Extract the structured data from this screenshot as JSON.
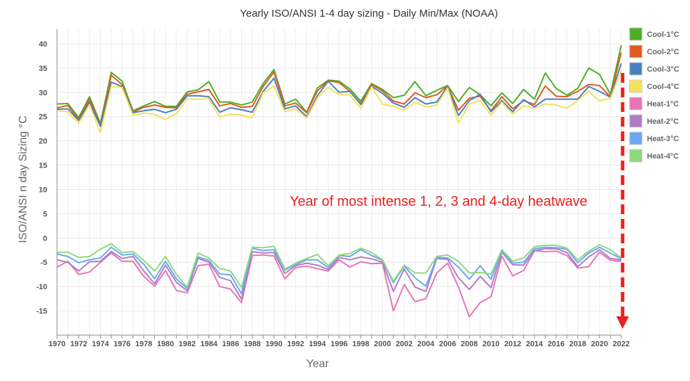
{
  "chart_data": {
    "type": "line",
    "title": "Yearly ISO/ANSI 1-4 day sizing - Daily Min/Max (NOAA)",
    "xlabel": "Year",
    "ylabel": "ISO/ANSI n day Sizing °C",
    "xlim": [
      1970,
      2022
    ],
    "ylim": [
      -20,
      43
    ],
    "yticks": [
      -15,
      -10,
      -5,
      0,
      5,
      10,
      15,
      20,
      25,
      30,
      35,
      40
    ],
    "xticks": [
      1970,
      1972,
      1974,
      1976,
      1978,
      1980,
      1982,
      1984,
      1986,
      1988,
      1990,
      1992,
      1994,
      1996,
      1998,
      2000,
      2002,
      2004,
      2006,
      2008,
      2010,
      2012,
      2014,
      2016,
      2018,
      2020,
      2022
    ],
    "grid": true,
    "legend_position": "right",
    "annotation": "Year of most intense 1, 2, 3 and 4-day heatwave",
    "annotation_color": "#e8201e",
    "x": [
      1970,
      1971,
      1972,
      1973,
      1974,
      1975,
      1976,
      1977,
      1978,
      1979,
      1980,
      1981,
      1982,
      1983,
      1984,
      1985,
      1986,
      1987,
      1988,
      1989,
      1990,
      1991,
      1992,
      1993,
      1994,
      1995,
      1996,
      1997,
      1998,
      1999,
      2000,
      2001,
      2002,
      2003,
      2004,
      2005,
      2006,
      2007,
      2008,
      2009,
      2010,
      2011,
      2012,
      2013,
      2014,
      2015,
      2016,
      2017,
      2018,
      2019,
      2020,
      2021,
      2022
    ],
    "series": [
      {
        "name": "Cool-1°C",
        "color": "#4caf26",
        "values": [
          27.6,
          27.7,
          24.8,
          29.1,
          23.6,
          34.1,
          32.3,
          26.2,
          27.2,
          28.1,
          27.1,
          27.1,
          30.1,
          30.5,
          32.2,
          28.0,
          28.0,
          27.4,
          28.0,
          31.8,
          34.7,
          27.6,
          28.6,
          25.9,
          30.9,
          32.5,
          32.3,
          30.7,
          28.2,
          31.8,
          30.6,
          28.9,
          29.4,
          32.2,
          29.3,
          30.4,
          31.4,
          28.1,
          31.0,
          29.5,
          27.2,
          29.9,
          27.7,
          30.6,
          28.6,
          34.0,
          30.8,
          29.4,
          30.8,
          35.0,
          33.7,
          29.6,
          39.7
        ]
      },
      {
        "name": "Cool-2°C",
        "color": "#e05a1e",
        "values": [
          26.8,
          27.3,
          24.4,
          28.6,
          23.2,
          33.5,
          31.6,
          25.9,
          26.9,
          27.4,
          26.9,
          26.8,
          29.6,
          30.1,
          30.6,
          27.2,
          27.7,
          26.9,
          27.1,
          31.2,
          34.2,
          27.2,
          27.8,
          25.8,
          30.3,
          32.4,
          32.0,
          30.2,
          27.7,
          31.6,
          30.3,
          28.2,
          27.6,
          29.9,
          28.9,
          29.5,
          31.3,
          26.3,
          28.8,
          29.2,
          26.2,
          29.1,
          26.6,
          28.3,
          27.5,
          31.3,
          29.2,
          29.1,
          30.2,
          31.6,
          31.4,
          29.1,
          38.2
        ]
      },
      {
        "name": "Cool-3°C",
        "color": "#4a7fbf",
        "values": [
          26.5,
          26.6,
          24.2,
          28.0,
          23.0,
          32.1,
          31.2,
          25.8,
          26.2,
          26.5,
          25.8,
          26.5,
          29.3,
          29.3,
          29.1,
          25.9,
          26.8,
          26.4,
          25.9,
          30.2,
          32.9,
          26.6,
          27.2,
          25.0,
          29.3,
          32.3,
          30.0,
          30.2,
          27.5,
          31.2,
          29.8,
          27.8,
          26.9,
          28.9,
          27.6,
          28.0,
          31.2,
          25.2,
          28.3,
          29.6,
          26.0,
          28.3,
          26.0,
          28.5,
          27.0,
          28.6,
          28.6,
          28.6,
          28.6,
          31.2,
          30.2,
          29.0,
          36.0
        ]
      },
      {
        "name": "Cool-4°C",
        "color": "#f5e15a",
        "values": [
          26.2,
          26.0,
          23.6,
          27.5,
          21.7,
          31.2,
          31.0,
          25.3,
          25.7,
          25.5,
          24.4,
          25.6,
          28.6,
          28.6,
          28.7,
          24.9,
          25.5,
          25.3,
          24.8,
          29.9,
          31.3,
          26.0,
          26.6,
          24.7,
          28.8,
          31.1,
          29.5,
          29.5,
          26.7,
          31.1,
          27.6,
          27.1,
          26.3,
          28.0,
          27.0,
          27.4,
          30.9,
          23.7,
          27.6,
          28.3,
          25.3,
          28.0,
          25.5,
          27.2,
          26.7,
          27.6,
          27.4,
          26.7,
          28.3,
          30.2,
          28.2,
          28.8,
          34.5
        ]
      },
      {
        "name": "Heat-1°C",
        "color": "#e874b5",
        "values": [
          -6.0,
          -4.8,
          -7.5,
          -7.0,
          -5.0,
          -3.1,
          -4.8,
          -4.8,
          -7.9,
          -9.9,
          -6.7,
          -10.8,
          -11.3,
          -5.7,
          -5.4,
          -10.0,
          -10.5,
          -13.3,
          -3.6,
          -3.5,
          -3.7,
          -8.4,
          -6.1,
          -5.8,
          -6.3,
          -6.8,
          -4.5,
          -6.0,
          -4.9,
          -5.3,
          -5.2,
          -15.0,
          -9.6,
          -13.1,
          -12.5,
          -7.2,
          -5.2,
          -10.1,
          -16.2,
          -13.3,
          -12.1,
          -3.7,
          -7.8,
          -6.7,
          -2.6,
          -2.8,
          -2.7,
          -3.6,
          -6.2,
          -5.9,
          -2.9,
          -4.6,
          -4.8
        ]
      },
      {
        "name": "Heat-2°C",
        "color": "#b07cc6",
        "values": [
          -4.5,
          -5.0,
          -6.8,
          -4.9,
          -4.8,
          -2.8,
          -4.2,
          -3.8,
          -6.8,
          -9.4,
          -5.6,
          -9.1,
          -10.9,
          -4.2,
          -5.0,
          -8.1,
          -8.8,
          -12.6,
          -2.8,
          -3.1,
          -3.0,
          -7.3,
          -5.7,
          -5.2,
          -5.6,
          -6.5,
          -4.0,
          -4.5,
          -3.9,
          -4.3,
          -5.0,
          -11.0,
          -6.4,
          -10.1,
          -11.0,
          -4.2,
          -4.4,
          -8.2,
          -10.6,
          -7.9,
          -10.2,
          -2.9,
          -5.5,
          -5.6,
          -2.6,
          -2.2,
          -2.2,
          -3.0,
          -5.9,
          -3.9,
          -2.4,
          -4.2,
          -4.5
        ]
      },
      {
        "name": "Heat-3°C",
        "color": "#6aa8f5",
        "values": [
          -3.3,
          -3.8,
          -5.1,
          -4.5,
          -4.1,
          -1.9,
          -3.5,
          -3.3,
          -5.4,
          -8.4,
          -4.8,
          -8.4,
          -10.4,
          -3.9,
          -4.6,
          -7.4,
          -7.6,
          -11.5,
          -2.1,
          -2.6,
          -2.4,
          -6.6,
          -5.5,
          -4.5,
          -4.5,
          -6.1,
          -3.6,
          -3.8,
          -2.4,
          -3.6,
          -4.6,
          -9.2,
          -5.8,
          -8.2,
          -9.9,
          -4.0,
          -4.1,
          -6.0,
          -8.5,
          -5.7,
          -8.5,
          -2.7,
          -5.2,
          -5.0,
          -2.2,
          -1.9,
          -2.0,
          -2.3,
          -5.1,
          -3.1,
          -1.9,
          -3.1,
          -4.3
        ]
      },
      {
        "name": "Heat-4°C",
        "color": "#8ed97a",
        "values": [
          -3.0,
          -2.9,
          -4.0,
          -3.8,
          -2.3,
          -1.2,
          -3.0,
          -2.8,
          -4.6,
          -6.8,
          -3.8,
          -7.5,
          -10.1,
          -3.1,
          -4.1,
          -6.3,
          -6.8,
          -10.2,
          -1.9,
          -2.0,
          -1.7,
          -6.4,
          -5.2,
          -4.2,
          -3.4,
          -5.7,
          -3.5,
          -3.2,
          -2.1,
          -3.0,
          -4.5,
          -8.9,
          -5.6,
          -7.2,
          -7.2,
          -3.8,
          -3.5,
          -4.8,
          -7.2,
          -7.1,
          -7.5,
          -2.4,
          -4.8,
          -4.1,
          -1.8,
          -1.5,
          -1.5,
          -2.1,
          -4.5,
          -2.7,
          -1.4,
          -2.4,
          -4.1
        ]
      }
    ]
  }
}
